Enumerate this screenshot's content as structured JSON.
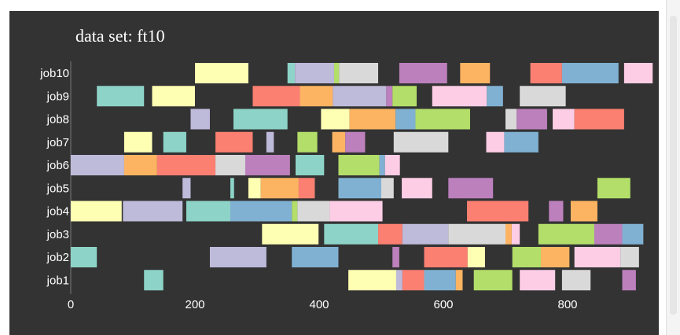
{
  "chart_data": {
    "type": "gantt",
    "title": "data set: ft10",
    "xlim": [
      0,
      930
    ],
    "xticks": [
      0,
      200,
      400,
      600,
      800
    ],
    "grid": false,
    "background": "#333333",
    "text_color": "#ffffff",
    "palette": [
      "#8dd3c7",
      "#ffffb3",
      "#bebada",
      "#fb8072",
      "#80b1d3",
      "#fdb462",
      "#b3de69",
      "#fccde5",
      "#d9d9d9",
      "#bc80bd"
    ],
    "jobs": [
      {
        "name": "job10",
        "tasks": [
          {
            "start": 200,
            "end": 286,
            "color": 1
          },
          {
            "start": 349,
            "end": 361,
            "color": 0
          },
          {
            "start": 361,
            "end": 424,
            "color": 2
          },
          {
            "start": 424,
            "end": 432,
            "color": 6
          },
          {
            "start": 432,
            "end": 495,
            "color": 8
          },
          {
            "start": 529,
            "end": 606,
            "color": 9
          },
          {
            "start": 627,
            "end": 675,
            "color": 5
          },
          {
            "start": 740,
            "end": 791,
            "color": 3
          },
          {
            "start": 791,
            "end": 882,
            "color": 4
          },
          {
            "start": 891,
            "end": 937,
            "color": 7
          }
        ]
      },
      {
        "name": "job9",
        "tasks": [
          {
            "start": 42,
            "end": 118,
            "color": 0
          },
          {
            "start": 131,
            "end": 200,
            "color": 1
          },
          {
            "start": 293,
            "end": 369,
            "color": 3
          },
          {
            "start": 369,
            "end": 422,
            "color": 5
          },
          {
            "start": 422,
            "end": 508,
            "color": 2
          },
          {
            "start": 508,
            "end": 518,
            "color": 9
          },
          {
            "start": 518,
            "end": 557,
            "color": 6
          },
          {
            "start": 582,
            "end": 670,
            "color": 7
          },
          {
            "start": 670,
            "end": 696,
            "color": 4
          },
          {
            "start": 723,
            "end": 797,
            "color": 8
          }
        ]
      },
      {
        "name": "job8",
        "tasks": [
          {
            "start": 193,
            "end": 224,
            "color": 2
          },
          {
            "start": 262,
            "end": 349,
            "color": 0
          },
          {
            "start": 403,
            "end": 449,
            "color": 1
          },
          {
            "start": 449,
            "end": 523,
            "color": 5
          },
          {
            "start": 523,
            "end": 555,
            "color": 4
          },
          {
            "start": 555,
            "end": 643,
            "color": 6
          },
          {
            "start": 700,
            "end": 718,
            "color": 8
          },
          {
            "start": 718,
            "end": 767,
            "color": 9
          },
          {
            "start": 776,
            "end": 811,
            "color": 7
          },
          {
            "start": 811,
            "end": 891,
            "color": 3
          }
        ]
      },
      {
        "name": "job7",
        "tasks": [
          {
            "start": 86,
            "end": 131,
            "color": 1
          },
          {
            "start": 149,
            "end": 186,
            "color": 0
          },
          {
            "start": 233,
            "end": 293,
            "color": 3
          },
          {
            "start": 315,
            "end": 327,
            "color": 2
          },
          {
            "start": 365,
            "end": 397,
            "color": 6
          },
          {
            "start": 421,
            "end": 442,
            "color": 5
          },
          {
            "start": 442,
            "end": 474,
            "color": 9
          },
          {
            "start": 520,
            "end": 608,
            "color": 8
          },
          {
            "start": 669,
            "end": 698,
            "color": 7
          },
          {
            "start": 698,
            "end": 753,
            "color": 4
          }
        ]
      },
      {
        "name": "job6",
        "tasks": [
          {
            "start": 0,
            "end": 86,
            "color": 2
          },
          {
            "start": 86,
            "end": 139,
            "color": 5
          },
          {
            "start": 139,
            "end": 233,
            "color": 3
          },
          {
            "start": 233,
            "end": 281,
            "color": 8
          },
          {
            "start": 281,
            "end": 353,
            "color": 9
          },
          {
            "start": 362,
            "end": 408,
            "color": 0
          },
          {
            "start": 431,
            "end": 497,
            "color": 6
          },
          {
            "start": 497,
            "end": 506,
            "color": 4
          },
          {
            "start": 506,
            "end": 530,
            "color": 7
          }
        ]
      },
      {
        "name": "job5",
        "tasks": [
          {
            "start": 180,
            "end": 193,
            "color": 2
          },
          {
            "start": 257,
            "end": 263,
            "color": 0
          },
          {
            "start": 286,
            "end": 306,
            "color": 1
          },
          {
            "start": 306,
            "end": 367,
            "color": 5
          },
          {
            "start": 367,
            "end": 393,
            "color": 3
          },
          {
            "start": 431,
            "end": 500,
            "color": 4
          },
          {
            "start": 500,
            "end": 520,
            "color": 8
          },
          {
            "start": 533,
            "end": 582,
            "color": 7
          },
          {
            "start": 608,
            "end": 680,
            "color": 9
          },
          {
            "start": 848,
            "end": 901,
            "color": 6
          }
        ]
      },
      {
        "name": "job4",
        "tasks": [
          {
            "start": 0,
            "end": 82,
            "color": 1
          },
          {
            "start": 84,
            "end": 180,
            "color": 2
          },
          {
            "start": 186,
            "end": 257,
            "color": 0
          },
          {
            "start": 257,
            "end": 356,
            "color": 4
          },
          {
            "start": 356,
            "end": 365,
            "color": 6
          },
          {
            "start": 365,
            "end": 417,
            "color": 8
          },
          {
            "start": 417,
            "end": 502,
            "color": 7
          },
          {
            "start": 638,
            "end": 737,
            "color": 3
          },
          {
            "start": 770,
            "end": 793,
            "color": 9
          },
          {
            "start": 805,
            "end": 848,
            "color": 5
          }
        ]
      },
      {
        "name": "job3",
        "tasks": [
          {
            "start": 308,
            "end": 399,
            "color": 1
          },
          {
            "start": 408,
            "end": 495,
            "color": 0
          },
          {
            "start": 495,
            "end": 534,
            "color": 3
          },
          {
            "start": 534,
            "end": 608,
            "color": 2
          },
          {
            "start": 608,
            "end": 700,
            "color": 8
          },
          {
            "start": 700,
            "end": 710,
            "color": 5
          },
          {
            "start": 710,
            "end": 723,
            "color": 7
          },
          {
            "start": 753,
            "end": 843,
            "color": 6
          },
          {
            "start": 843,
            "end": 888,
            "color": 9
          },
          {
            "start": 888,
            "end": 922,
            "color": 4
          }
        ]
      },
      {
        "name": "job2",
        "tasks": [
          {
            "start": 0,
            "end": 42,
            "color": 0
          },
          {
            "start": 224,
            "end": 315,
            "color": 2
          },
          {
            "start": 356,
            "end": 431,
            "color": 4
          },
          {
            "start": 518,
            "end": 529,
            "color": 9
          },
          {
            "start": 569,
            "end": 639,
            "color": 3
          },
          {
            "start": 639,
            "end": 667,
            "color": 1
          },
          {
            "start": 711,
            "end": 757,
            "color": 6
          },
          {
            "start": 757,
            "end": 803,
            "color": 5
          },
          {
            "start": 811,
            "end": 885,
            "color": 7
          },
          {
            "start": 885,
            "end": 915,
            "color": 8
          }
        ]
      },
      {
        "name": "job1",
        "tasks": [
          {
            "start": 118,
            "end": 149,
            "color": 0
          },
          {
            "start": 447,
            "end": 524,
            "color": 1
          },
          {
            "start": 524,
            "end": 534,
            "color": 2
          },
          {
            "start": 534,
            "end": 569,
            "color": 3
          },
          {
            "start": 569,
            "end": 620,
            "color": 4
          },
          {
            "start": 620,
            "end": 631,
            "color": 5
          },
          {
            "start": 649,
            "end": 711,
            "color": 6
          },
          {
            "start": 723,
            "end": 780,
            "color": 7
          },
          {
            "start": 791,
            "end": 837,
            "color": 8
          },
          {
            "start": 888,
            "end": 910,
            "color": 9
          }
        ]
      }
    ]
  }
}
